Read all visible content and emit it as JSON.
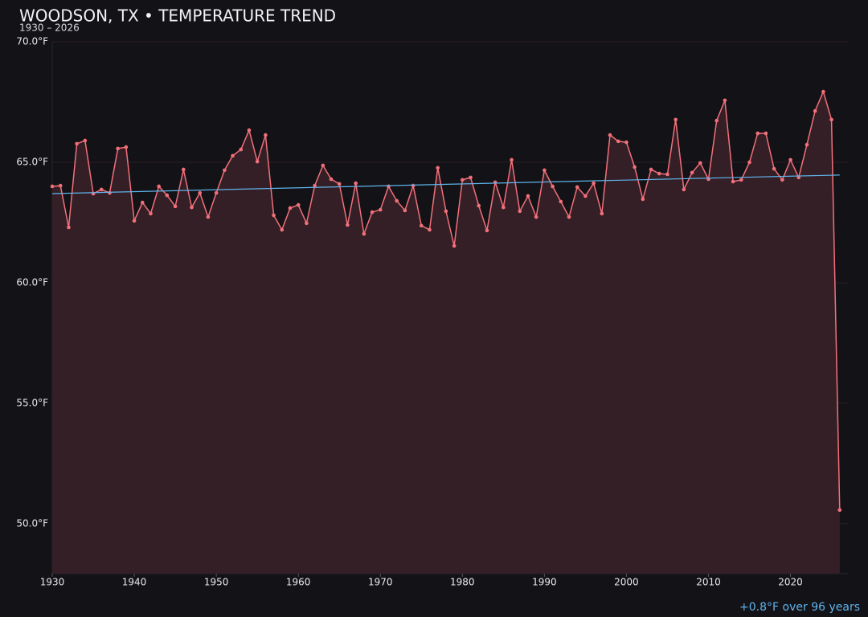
{
  "chart_data": {
    "type": "line",
    "title": "WOODSON, TX • TEMPERATURE TREND",
    "subtitle": "1930 – 2026",
    "annotation": "+0.8°F over 96 years",
    "annotation_color": "#5fb3ea",
    "x": [
      1930,
      1931,
      1932,
      1933,
      1934,
      1935,
      1936,
      1937,
      1938,
      1939,
      1940,
      1941,
      1942,
      1943,
      1944,
      1945,
      1946,
      1947,
      1948,
      1949,
      1950,
      1951,
      1952,
      1953,
      1954,
      1955,
      1956,
      1957,
      1958,
      1959,
      1960,
      1961,
      1962,
      1963,
      1964,
      1965,
      1966,
      1967,
      1968,
      1969,
      1970,
      1971,
      1972,
      1973,
      1974,
      1975,
      1976,
      1977,
      1978,
      1979,
      1980,
      1981,
      1982,
      1983,
      1984,
      1985,
      1986,
      1987,
      1988,
      1989,
      1990,
      1991,
      1992,
      1993,
      1994,
      1995,
      1996,
      1997,
      1998,
      1999,
      2000,
      2001,
      2002,
      2003,
      2004,
      2005,
      2006,
      2007,
      2008,
      2009,
      2010,
      2011,
      2012,
      2013,
      2014,
      2015,
      2016,
      2017,
      2018,
      2019,
      2020,
      2021,
      2022,
      2023,
      2024,
      2025,
      2026
    ],
    "series": [
      {
        "color": "#f2707a",
        "area_color": "#351f26",
        "values": [
          64.0,
          64.03,
          62.3,
          65.77,
          65.9,
          63.7,
          63.87,
          63.73,
          65.57,
          65.63,
          62.57,
          63.33,
          62.87,
          64.0,
          63.63,
          63.17,
          64.7,
          63.13,
          63.73,
          62.73,
          63.73,
          64.67,
          65.27,
          65.53,
          66.33,
          65.03,
          66.13,
          62.8,
          62.2,
          63.1,
          63.23,
          62.47,
          64.03,
          64.87,
          64.3,
          64.1,
          62.4,
          64.13,
          62.03,
          62.93,
          63.03,
          64.0,
          63.4,
          63.0,
          64.03,
          62.37,
          62.2,
          64.77,
          62.97,
          61.53,
          64.27,
          64.37,
          63.2,
          62.17,
          64.17,
          63.13,
          65.1,
          62.97,
          63.6,
          62.73,
          64.67,
          64.0,
          63.37,
          62.73,
          63.97,
          63.6,
          64.13,
          62.87,
          66.13,
          65.87,
          65.83,
          64.8,
          63.47,
          64.7,
          64.53,
          64.5,
          66.77,
          63.87,
          64.57,
          64.97,
          64.3,
          66.73,
          67.57,
          64.2,
          64.27,
          65.0,
          66.2,
          66.2,
          64.73,
          64.27,
          65.1,
          64.37,
          65.73,
          67.13,
          67.93,
          66.77,
          50.57
        ]
      }
    ],
    "trend": {
      "color": "#5fb3ea",
      "x": [
        1930,
        2026
      ],
      "values": [
        63.7,
        64.47
      ]
    },
    "xlim": [
      1930,
      2027
    ],
    "xticks": [
      1930,
      1940,
      1950,
      1960,
      1970,
      1980,
      1990,
      2000,
      2010,
      2020
    ],
    "ylim": [
      47.93,
      70
    ],
    "yticks": [
      {
        "value": 50,
        "label": "50.0°F"
      },
      {
        "value": 55,
        "label": "55.0°F"
      },
      {
        "value": 60,
        "label": "60.0°F"
      },
      {
        "value": 65,
        "label": "65.0°F"
      },
      {
        "value": 70,
        "label": "70.0°F"
      }
    ],
    "grid": true
  }
}
